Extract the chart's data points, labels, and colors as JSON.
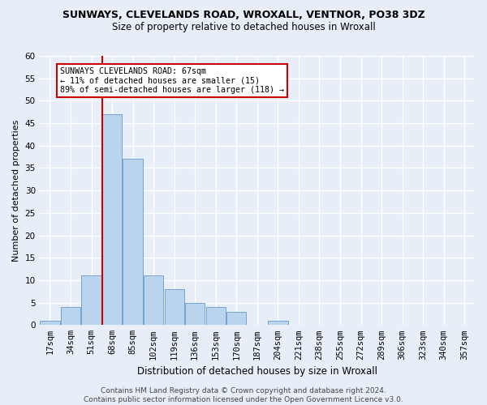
{
  "title": "SUNWAYS, CLEVELANDS ROAD, WROXALL, VENTNOR, PO38 3DZ",
  "subtitle": "Size of property relative to detached houses in Wroxall",
  "xlabel": "Distribution of detached houses by size in Wroxall",
  "ylabel": "Number of detached properties",
  "bar_labels": [
    "17sqm",
    "34sqm",
    "51sqm",
    "68sqm",
    "85sqm",
    "102sqm",
    "119sqm",
    "136sqm",
    "153sqm",
    "170sqm",
    "187sqm",
    "204sqm",
    "221sqm",
    "238sqm",
    "255sqm",
    "272sqm",
    "289sqm",
    "306sqm",
    "323sqm",
    "340sqm",
    "357sqm"
  ],
  "bar_values": [
    1,
    4,
    11,
    47,
    37,
    11,
    8,
    5,
    4,
    3,
    0,
    1,
    0,
    0,
    0,
    0,
    0,
    0,
    0,
    0,
    0
  ],
  "bar_color": "#bad4ed",
  "bar_edge_color": "#6699cc",
  "vline_color": "#cc0000",
  "annotation_text": "SUNWAYS CLEVELANDS ROAD: 67sqm\n← 11% of detached houses are smaller (15)\n89% of semi-detached houses are larger (118) →",
  "annotation_box_color": "#ffffff",
  "annotation_box_edge": "#cc0000",
  "ylim": [
    0,
    60
  ],
  "yticks": [
    0,
    5,
    10,
    15,
    20,
    25,
    30,
    35,
    40,
    45,
    50,
    55,
    60
  ],
  "footer": "Contains HM Land Registry data © Crown copyright and database right 2024.\nContains public sector information licensed under the Open Government Licence v3.0.",
  "background_color": "#e8eef8",
  "grid_color": "#ffffff",
  "title_fontsize": 9,
  "subtitle_fontsize": 8.5,
  "ylabel_fontsize": 8,
  "xlabel_fontsize": 8.5,
  "tick_fontsize": 7.5,
  "footer_fontsize": 6.5
}
